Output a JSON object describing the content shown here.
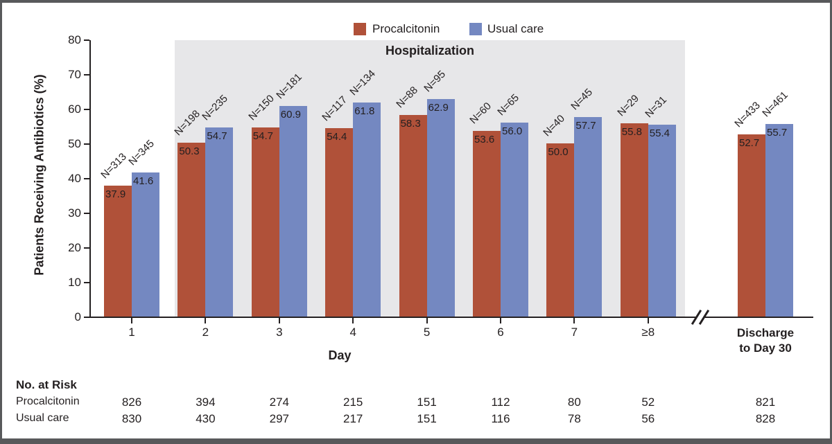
{
  "chart_data": {
    "type": "bar",
    "title": "",
    "ylabel": "Patients Receiving Antibiotics (%)",
    "xlabel": "Day",
    "ylim": [
      0,
      80
    ],
    "yticks": [
      0,
      10,
      20,
      30,
      40,
      50,
      60,
      70,
      80
    ],
    "grid": false,
    "legend_position": "top",
    "categories": [
      "1",
      "2",
      "3",
      "4",
      "5",
      "6",
      "7",
      "≥8",
      "Discharge to Day 30"
    ],
    "x_tick_labels": [
      "1",
      "2",
      "3",
      "4",
      "5",
      "6",
      "7",
      "≥8"
    ],
    "last_category_lines": [
      "Discharge",
      "to Day 30"
    ],
    "axis_break": "//",
    "band": {
      "label": "Hospitalization",
      "color": "#e7e7e9",
      "covers": [
        "2",
        "3",
        "4",
        "5",
        "6",
        "7",
        "≥8"
      ]
    },
    "series": [
      {
        "name": "Procalcitonin",
        "color": "#b05139",
        "values": [
          37.9,
          50.3,
          54.7,
          54.4,
          58.3,
          53.6,
          50.0,
          55.8,
          52.7
        ],
        "value_labels": [
          "37.9",
          "50.3",
          "54.7",
          "54.4",
          "58.3",
          "53.6",
          "50.0",
          "55.8",
          "52.7"
        ],
        "n_labels": [
          "N=313",
          "N=198",
          "N=150",
          "N=117",
          "N=88",
          "N=60",
          "N=40",
          "N=29",
          "N=433"
        ]
      },
      {
        "name": "Usual care",
        "color": "#7488c1",
        "values": [
          41.6,
          54.7,
          60.9,
          61.8,
          62.9,
          56.0,
          57.7,
          55.4,
          55.7
        ],
        "value_labels": [
          "41.6",
          "54.7",
          "60.9",
          "61.8",
          "62.9",
          "56.0",
          "57.7",
          "55.4",
          "55.7"
        ],
        "n_labels": [
          "N=345",
          "N=235",
          "N=181",
          "N=134",
          "N=95",
          "N=65",
          "N=45",
          "N=31",
          "N=461"
        ]
      }
    ]
  },
  "risk_table": {
    "title": "No. at Risk",
    "rows": [
      {
        "label": "Procalcitonin",
        "values": [
          "826",
          "394",
          "274",
          "215",
          "151",
          "112",
          "80",
          "52",
          "821"
        ]
      },
      {
        "label": "Usual care",
        "values": [
          "830",
          "430",
          "297",
          "217",
          "151",
          "116",
          "78",
          "56",
          "828"
        ]
      }
    ]
  }
}
